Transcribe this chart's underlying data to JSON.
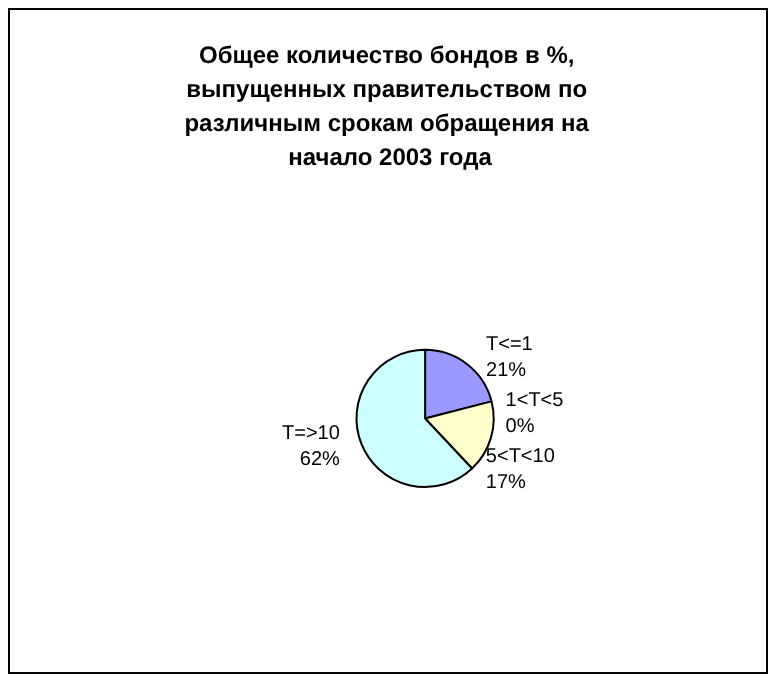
{
  "chart_data": {
    "type": "pie",
    "title": "Общее количество бондов в %, выпущенных правительством по различным срокам обращения на начало 2003 года",
    "categories": [
      "T<=1",
      "1<T<5",
      "5<T<10",
      "T=>10"
    ],
    "values": [
      21,
      0,
      17,
      62
    ],
    "value_labels": [
      "21%",
      "0%",
      "17%",
      "62%"
    ],
    "colors": [
      "#9999ff",
      "#993366",
      "#ffffcc",
      "#ccffff"
    ],
    "legend": false
  }
}
